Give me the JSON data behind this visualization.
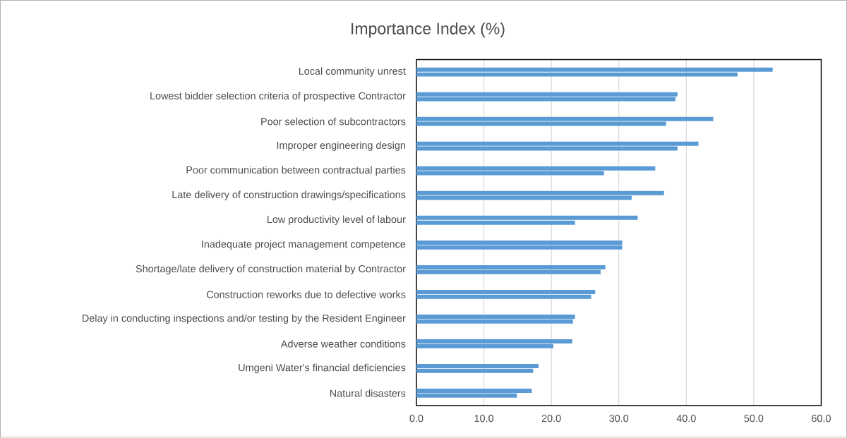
{
  "chart_data": {
    "type": "bar",
    "orientation": "horizontal",
    "title": "Importance Index (%)",
    "categories": [
      "Local community unrest",
      "Lowest bidder selection criteria of prospective Contractor",
      "Poor selection of subcontractors",
      "Improper engineering design",
      "Poor communication between contractual parties",
      "Late delivery of construction drawings/specifications",
      "Low productivity level of labour",
      "Inadequate project management competence",
      "Shortage/late delivery of construction material by Contractor",
      "Construction reworks due to defective works",
      "Delay in conducting inspections and/or testing by the Resident Engineer",
      "Adverse weather conditions",
      "Umgeni Water's financial deficiencies",
      "Natural disasters"
    ],
    "series": [
      {
        "color": "#5b9bd5",
        "values": [
          52.8,
          38.7,
          44.0,
          41.8,
          35.4,
          36.7,
          32.8,
          30.5,
          28.0,
          26.5,
          23.5,
          23.1,
          18.1,
          17.1
        ]
      },
      {
        "color": "#5b9bd5",
        "values": [
          47.6,
          38.4,
          37.0,
          38.7,
          27.8,
          31.9,
          23.5,
          30.5,
          27.3,
          25.9,
          23.2,
          20.3,
          17.3,
          14.9
        ]
      }
    ],
    "xlim": [
      0,
      60
    ],
    "xticks": [
      {
        "value": 0,
        "label": "0.0"
      },
      {
        "value": 10,
        "label": "10.0"
      },
      {
        "value": 20,
        "label": "20.0"
      },
      {
        "value": 30,
        "label": "30.0"
      },
      {
        "value": 40,
        "label": "40.0"
      },
      {
        "value": 50,
        "label": "50.0"
      },
      {
        "value": 60,
        "label": "60.0"
      }
    ],
    "grid": "x"
  }
}
